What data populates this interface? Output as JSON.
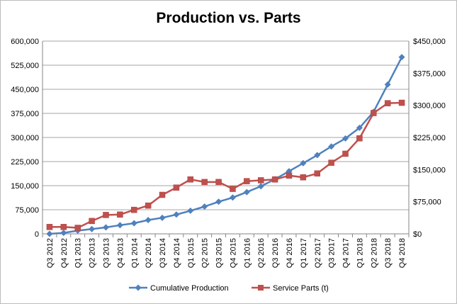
{
  "chart_data": {
    "type": "line",
    "title": "Production vs. Parts",
    "xlabel": "",
    "ylabel": "",
    "categories": [
      "Q3 2012",
      "Q4 2012",
      "Q1 2013",
      "Q2 2013",
      "Q3 2013",
      "Q4 2013",
      "Q1 2014",
      "Q2 2014",
      "Q3 2014",
      "Q4 2014",
      "Q1 2015",
      "Q2 2015",
      "Q3 2015",
      "Q4 2015",
      "Q1 2016",
      "Q2 2016",
      "Q3 2016",
      "Q4 2016",
      "Q1 2017",
      "Q2 2017",
      "Q3 2017",
      "Q4 2017",
      "Q1 2018",
      "Q2 2018",
      "Q3 2018",
      "Q4 2018"
    ],
    "y_left": {
      "ylim": [
        0,
        600000
      ],
      "ticks": [
        "0",
        "75,000",
        "150,000",
        "225,000",
        "300,000",
        "375,000",
        "450,000",
        "525,000",
        "600,000"
      ]
    },
    "y_right": {
      "ylim": [
        0,
        450000
      ],
      "ticks": [
        "$0",
        "$75,000",
        "$150,000",
        "$225,000",
        "$300,000",
        "$375,000",
        "$450,000"
      ]
    },
    "grid": true,
    "legend_position": "bottom",
    "series": [
      {
        "name": "Cumulative Production",
        "axis": "left",
        "color": "#4f81bd",
        "marker": "diamond",
        "values": [
          0,
          3000,
          10000,
          15000,
          20000,
          27000,
          33000,
          43000,
          50000,
          60000,
          72000,
          85000,
          100000,
          113000,
          130000,
          148000,
          170000,
          195000,
          220000,
          245000,
          272000,
          297000,
          330000,
          380000,
          465000,
          550000
        ]
      },
      {
        "name": "Service Parts (t)",
        "axis": "right",
        "color": "#c0504d",
        "marker": "square",
        "values": [
          16000,
          16000,
          14000,
          30000,
          44000,
          45000,
          56000,
          66000,
          91000,
          108000,
          127000,
          121000,
          121000,
          105000,
          123000,
          125000,
          127000,
          136000,
          132000,
          141000,
          166000,
          187000,
          223000,
          282000,
          305000,
          306000
        ]
      }
    ]
  }
}
